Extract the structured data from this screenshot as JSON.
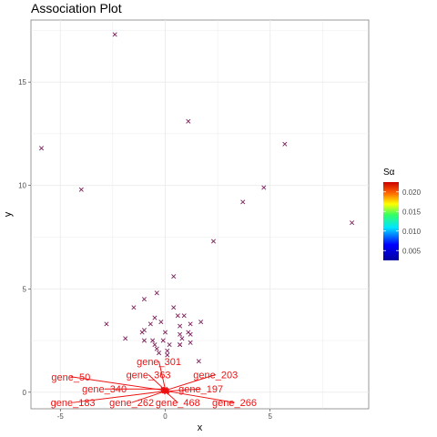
{
  "chart_data": {
    "type": "scatter",
    "title": "Association Plot",
    "xlabel": "x",
    "ylabel": "y",
    "xlim": [
      -6.4,
      9.7
    ],
    "ylim": [
      -0.8,
      18.0
    ],
    "x_ticks": [
      -5,
      0,
      5
    ],
    "x_tick_labels": [
      "-5",
      "0",
      "5"
    ],
    "y_ticks": [
      0,
      5,
      10,
      15
    ],
    "y_tick_labels": [
      "0",
      "5",
      "10",
      "15"
    ],
    "grid": true,
    "legend": {
      "title": "Sα",
      "placement": "right",
      "min": 0.0025,
      "max": 0.0225,
      "ticks": [
        0.005,
        0.01,
        0.015,
        0.02
      ],
      "tick_labels": [
        "0.005",
        "0.010",
        "0.015",
        "0.020"
      ]
    },
    "points": [
      {
        "x": -2.4,
        "y": 17.3
      },
      {
        "x": 1.1,
        "y": 13.1
      },
      {
        "x": -5.9,
        "y": 11.8
      },
      {
        "x": 5.7,
        "y": 12.0
      },
      {
        "x": -4.0,
        "y": 9.8
      },
      {
        "x": 4.7,
        "y": 9.9
      },
      {
        "x": 3.7,
        "y": 9.2
      },
      {
        "x": 8.9,
        "y": 8.2
      },
      {
        "x": 2.3,
        "y": 7.3
      },
      {
        "x": 0.4,
        "y": 5.6
      },
      {
        "x": -0.4,
        "y": 4.8
      },
      {
        "x": -1.0,
        "y": 4.5
      },
      {
        "x": -1.5,
        "y": 4.1
      },
      {
        "x": 0.4,
        "y": 4.1
      },
      {
        "x": -2.8,
        "y": 3.3
      },
      {
        "x": -0.2,
        "y": 3.4
      },
      {
        "x": -0.5,
        "y": 3.6
      },
      {
        "x": 0.6,
        "y": 3.7
      },
      {
        "x": 0.9,
        "y": 3.7
      },
      {
        "x": 1.7,
        "y": 3.4
      },
      {
        "x": -0.7,
        "y": 3.3
      },
      {
        "x": 0.7,
        "y": 3.2
      },
      {
        "x": 1.2,
        "y": 3.3
      },
      {
        "x": -1.1,
        "y": 2.9
      },
      {
        "x": -1.0,
        "y": 3.0
      },
      {
        "x": 0.0,
        "y": 2.9
      },
      {
        "x": 0.7,
        "y": 2.8
      },
      {
        "x": 1.1,
        "y": 2.9
      },
      {
        "x": 1.2,
        "y": 2.8
      },
      {
        "x": -1.9,
        "y": 2.6
      },
      {
        "x": -1.0,
        "y": 2.5
      },
      {
        "x": -0.6,
        "y": 2.5
      },
      {
        "x": -0.1,
        "y": 2.5
      },
      {
        "x": 0.8,
        "y": 2.6
      },
      {
        "x": -0.5,
        "y": 2.3
      },
      {
        "x": 0.2,
        "y": 2.3
      },
      {
        "x": 0.7,
        "y": 2.3
      },
      {
        "x": 1.2,
        "y": 2.4
      },
      {
        "x": -0.4,
        "y": 2.1
      },
      {
        "x": 0.1,
        "y": 2.0
      },
      {
        "x": 0.7,
        "y": 2.3
      },
      {
        "x": -0.3,
        "y": 1.9
      },
      {
        "x": 0.1,
        "y": 1.8
      },
      {
        "x": 1.6,
        "y": 1.5
      }
    ],
    "labeled_points": [
      {
        "label": "gene_50",
        "x": -0.1,
        "y": 0.1,
        "tx": -4.5,
        "ty": 0.75
      },
      {
        "label": "gene_340",
        "x": -0.1,
        "y": 0.15,
        "tx": -2.9,
        "ty": 0.16
      },
      {
        "label": "gene_183",
        "x": -0.05,
        "y": 0.05,
        "tx": -4.4,
        "ty": -0.5
      },
      {
        "label": "gene_262",
        "x": 0.0,
        "y": 0.05,
        "tx": -1.6,
        "ty": -0.5
      },
      {
        "label": "gene_363",
        "x": 0.0,
        "y": 0.1,
        "tx": -0.8,
        "ty": 0.85
      },
      {
        "label": "gene_301",
        "x": 0.0,
        "y": 0.15,
        "tx": -0.3,
        "ty": 1.5
      },
      {
        "label": "gene_203",
        "x": 0.05,
        "y": 0.1,
        "tx": 2.4,
        "ty": 0.85
      },
      {
        "label": "gene_197",
        "x": 0.05,
        "y": 0.05,
        "tx": 1.7,
        "ty": 0.16
      },
      {
        "label": "gene_468",
        "x": 0.05,
        "y": 0.0,
        "tx": 0.6,
        "ty": -0.5
      },
      {
        "label": "gene_266",
        "x": 0.1,
        "y": 0.05,
        "tx": 3.3,
        "ty": -0.5
      }
    ]
  }
}
